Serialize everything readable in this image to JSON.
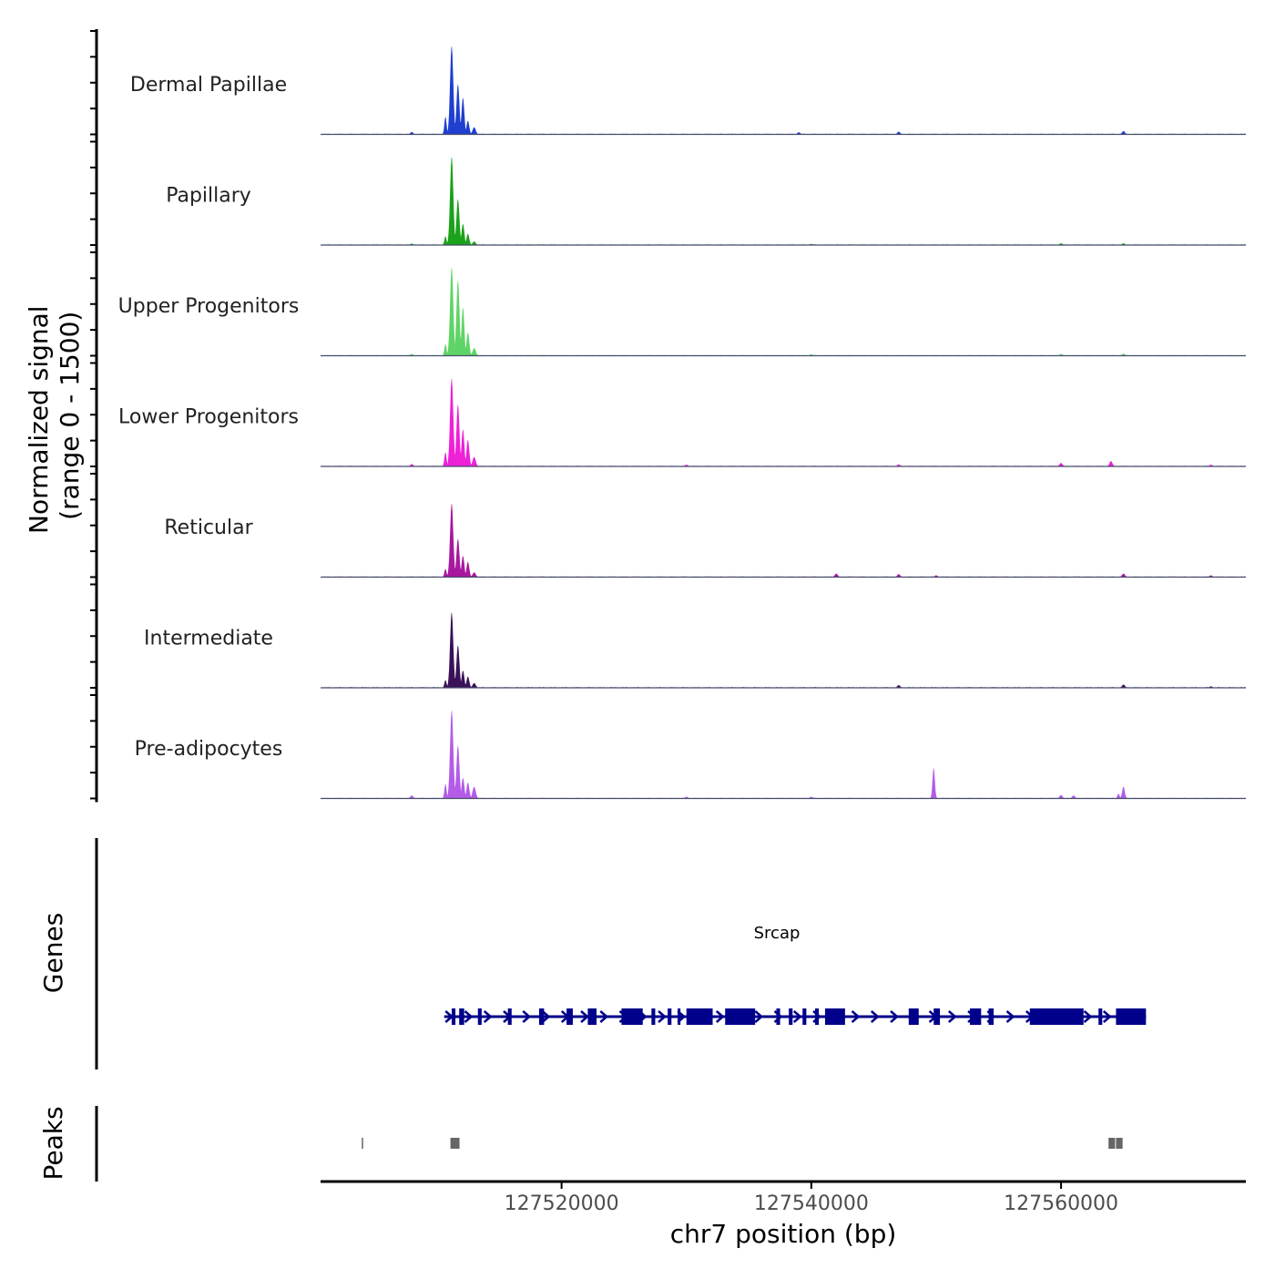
{
  "chart_data": {
    "type": "area",
    "title": "",
    "ylabel": "Normalized signal\n(range 0 - 1500)",
    "xlabel": "chr7 position (bp)",
    "xlim": [
      127500700,
      127574800
    ],
    "ylim": [
      0,
      1500
    ],
    "x_ticks": [
      127520000,
      127540000,
      127560000
    ],
    "x_tick_labels": [
      "127520000",
      "127540000",
      "127560000"
    ],
    "tracks": [
      {
        "name": "Dermal Papillae",
        "color": "#1f3fd0",
        "peaks": [
          {
            "center": 127511200,
            "width": 300,
            "height": 1500
          },
          {
            "center": 127511700,
            "width": 280,
            "height": 850
          },
          {
            "center": 127512100,
            "width": 260,
            "height": 620
          },
          {
            "center": 127510700,
            "width": 200,
            "height": 300
          },
          {
            "center": 127512500,
            "width": 260,
            "height": 230
          },
          {
            "center": 127513000,
            "width": 300,
            "height": 120
          }
        ],
        "minor": [
          [
            127508000,
            40
          ],
          [
            127539000,
            35
          ],
          [
            127547000,
            45
          ],
          [
            127565000,
            55
          ]
        ]
      },
      {
        "name": "Papillary",
        "color": "#1aa21a",
        "peaks": [
          {
            "center": 127511200,
            "width": 300,
            "height": 1500
          },
          {
            "center": 127511700,
            "width": 280,
            "height": 780
          },
          {
            "center": 127512100,
            "width": 260,
            "height": 360
          },
          {
            "center": 127510700,
            "width": 200,
            "height": 150
          },
          {
            "center": 127512500,
            "width": 260,
            "height": 190
          },
          {
            "center": 127513000,
            "width": 300,
            "height": 60
          }
        ],
        "minor": [
          [
            127508000,
            25
          ],
          [
            127540000,
            20
          ],
          [
            127560000,
            30
          ],
          [
            127565000,
            30
          ]
        ]
      },
      {
        "name": "Upper Progenitors",
        "color": "#5fd466",
        "peaks": [
          {
            "center": 127511200,
            "width": 300,
            "height": 1500
          },
          {
            "center": 127511700,
            "width": 280,
            "height": 1280
          },
          {
            "center": 127512100,
            "width": 260,
            "height": 820
          },
          {
            "center": 127510700,
            "width": 200,
            "height": 200
          },
          {
            "center": 127512500,
            "width": 260,
            "height": 390
          },
          {
            "center": 127513000,
            "width": 300,
            "height": 130
          }
        ],
        "minor": [
          [
            127508000,
            30
          ],
          [
            127540000,
            25
          ],
          [
            127560000,
            30
          ],
          [
            127565000,
            35
          ]
        ]
      },
      {
        "name": "Lower Progenitors",
        "color": "#ee20d8",
        "peaks": [
          {
            "center": 127511200,
            "width": 300,
            "height": 1500
          },
          {
            "center": 127511700,
            "width": 280,
            "height": 1050
          },
          {
            "center": 127512100,
            "width": 260,
            "height": 630
          },
          {
            "center": 127510700,
            "width": 200,
            "height": 240
          },
          {
            "center": 127512500,
            "width": 260,
            "height": 450
          },
          {
            "center": 127513000,
            "width": 300,
            "height": 160
          }
        ],
        "minor": [
          [
            127508000,
            40
          ],
          [
            127530000,
            30
          ],
          [
            127547000,
            35
          ],
          [
            127560000,
            60
          ],
          [
            127564000,
            90
          ],
          [
            127572000,
            30
          ]
        ]
      },
      {
        "name": "Reticular",
        "color": "#a8189f",
        "peaks": [
          {
            "center": 127511200,
            "width": 300,
            "height": 1250
          },
          {
            "center": 127511700,
            "width": 280,
            "height": 650
          },
          {
            "center": 127512100,
            "width": 260,
            "height": 360
          },
          {
            "center": 127510700,
            "width": 200,
            "height": 140
          },
          {
            "center": 127512500,
            "width": 260,
            "height": 260
          },
          {
            "center": 127513000,
            "width": 300,
            "height": 80
          }
        ],
        "minor": [
          [
            127542000,
            60
          ],
          [
            127547000,
            50
          ],
          [
            127550000,
            30
          ],
          [
            127565000,
            60
          ],
          [
            127572000,
            30
          ]
        ]
      },
      {
        "name": "Intermediate",
        "color": "#3a1158",
        "peaks": [
          {
            "center": 127511200,
            "width": 300,
            "height": 1280
          },
          {
            "center": 127511700,
            "width": 280,
            "height": 720
          },
          {
            "center": 127512100,
            "width": 260,
            "height": 290
          },
          {
            "center": 127510700,
            "width": 200,
            "height": 130
          },
          {
            "center": 127512500,
            "width": 260,
            "height": 190
          },
          {
            "center": 127513000,
            "width": 300,
            "height": 80
          }
        ],
        "minor": [
          [
            127547000,
            45
          ],
          [
            127565000,
            55
          ],
          [
            127572000,
            25
          ]
        ]
      },
      {
        "name": "Pre-adipocytes",
        "color": "#b35ce8",
        "peaks": [
          {
            "center": 127511200,
            "width": 300,
            "height": 1500
          },
          {
            "center": 127511700,
            "width": 280,
            "height": 900
          },
          {
            "center": 127512100,
            "width": 260,
            "height": 350
          },
          {
            "center": 127510700,
            "width": 200,
            "height": 250
          },
          {
            "center": 127512500,
            "width": 260,
            "height": 270
          },
          {
            "center": 127513000,
            "width": 300,
            "height": 200
          },
          {
            "center": 127549800,
            "width": 220,
            "height": 520
          },
          {
            "center": 127565000,
            "width": 250,
            "height": 200
          },
          {
            "center": 127564600,
            "width": 200,
            "height": 80
          }
        ],
        "minor": [
          [
            127508000,
            50
          ],
          [
            127530000,
            30
          ],
          [
            127540000,
            30
          ],
          [
            127560000,
            60
          ],
          [
            127561000,
            50
          ]
        ]
      }
    ],
    "genes": {
      "section_label": "Genes",
      "name": "Srcap",
      "strand": "+",
      "start": 127510600,
      "end": 127566800,
      "color": "#00008b",
      "exons": [
        [
          127511200,
          127511500
        ],
        [
          127511800,
          127512200
        ],
        [
          127513300,
          127513600
        ],
        [
          127515700,
          127516000
        ],
        [
          127518200,
          127518600
        ],
        [
          127520400,
          127520900
        ],
        [
          127522100,
          127522800
        ],
        [
          127524800,
          127526500
        ],
        [
          127527200,
          127527500
        ],
        [
          127528500,
          127528800
        ],
        [
          127529300,
          127529500
        ],
        [
          127530000,
          127532100
        ],
        [
          127533100,
          127535500
        ],
        [
          127537200,
          127537500
        ],
        [
          127538200,
          127538500
        ],
        [
          127539300,
          127539600
        ],
        [
          127540300,
          127540600
        ],
        [
          127541100,
          127542700
        ],
        [
          127547800,
          127548600
        ],
        [
          127549800,
          127550300
        ],
        [
          127552700,
          127553600
        ],
        [
          127554200,
          127554600
        ],
        [
          127557500,
          127561800
        ],
        [
          127563000,
          127563300
        ],
        [
          127564400,
          127566800
        ]
      ]
    },
    "peaks_track": {
      "section_label": "Peaks",
      "color": "#666666",
      "regions": [
        [
          127504000,
          127504120
        ],
        [
          127511100,
          127511900
        ],
        [
          127563800,
          127564400
        ],
        [
          127564400,
          127565000
        ]
      ]
    }
  }
}
